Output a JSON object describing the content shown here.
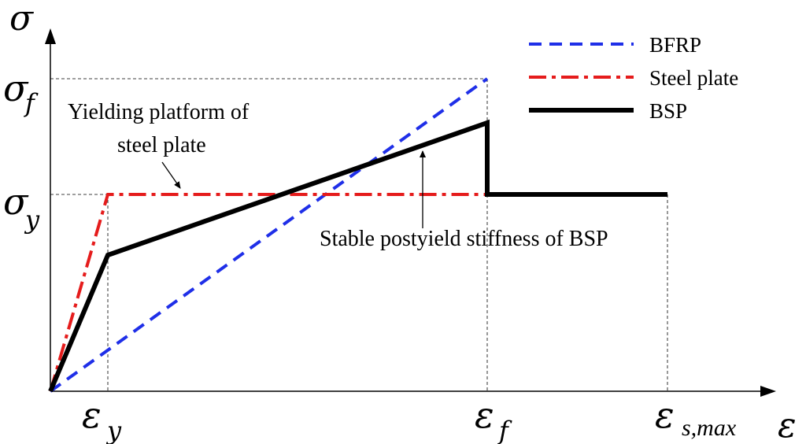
{
  "axes": {
    "y_symbol": "σ",
    "x_symbol": "ε"
  },
  "y_ticks": {
    "sigma_f_base": "σ",
    "sigma_f_sub": "f",
    "sigma_y_base": "σ",
    "sigma_y_sub": "y"
  },
  "x_ticks": {
    "eps_y_base": "ε",
    "eps_y_sub": "y",
    "eps_f_base": "ε",
    "eps_f_sub": "f",
    "eps_smax_base": "ε",
    "eps_smax_sub": "s,max"
  },
  "legend": [
    {
      "label": "BFRP",
      "color": "#1f2fe8",
      "style": "dashed"
    },
    {
      "label": "Steel plate",
      "color": "#e51c1c",
      "style": "dash-dot"
    },
    {
      "label": "BSP",
      "color": "#000000",
      "style": "solid"
    }
  ],
  "annotations": {
    "yield_platform_line1": "Yielding platform of",
    "yield_platform_line2": "steel plate",
    "postyield": "Stable postyield stiffness of BSP"
  }
}
